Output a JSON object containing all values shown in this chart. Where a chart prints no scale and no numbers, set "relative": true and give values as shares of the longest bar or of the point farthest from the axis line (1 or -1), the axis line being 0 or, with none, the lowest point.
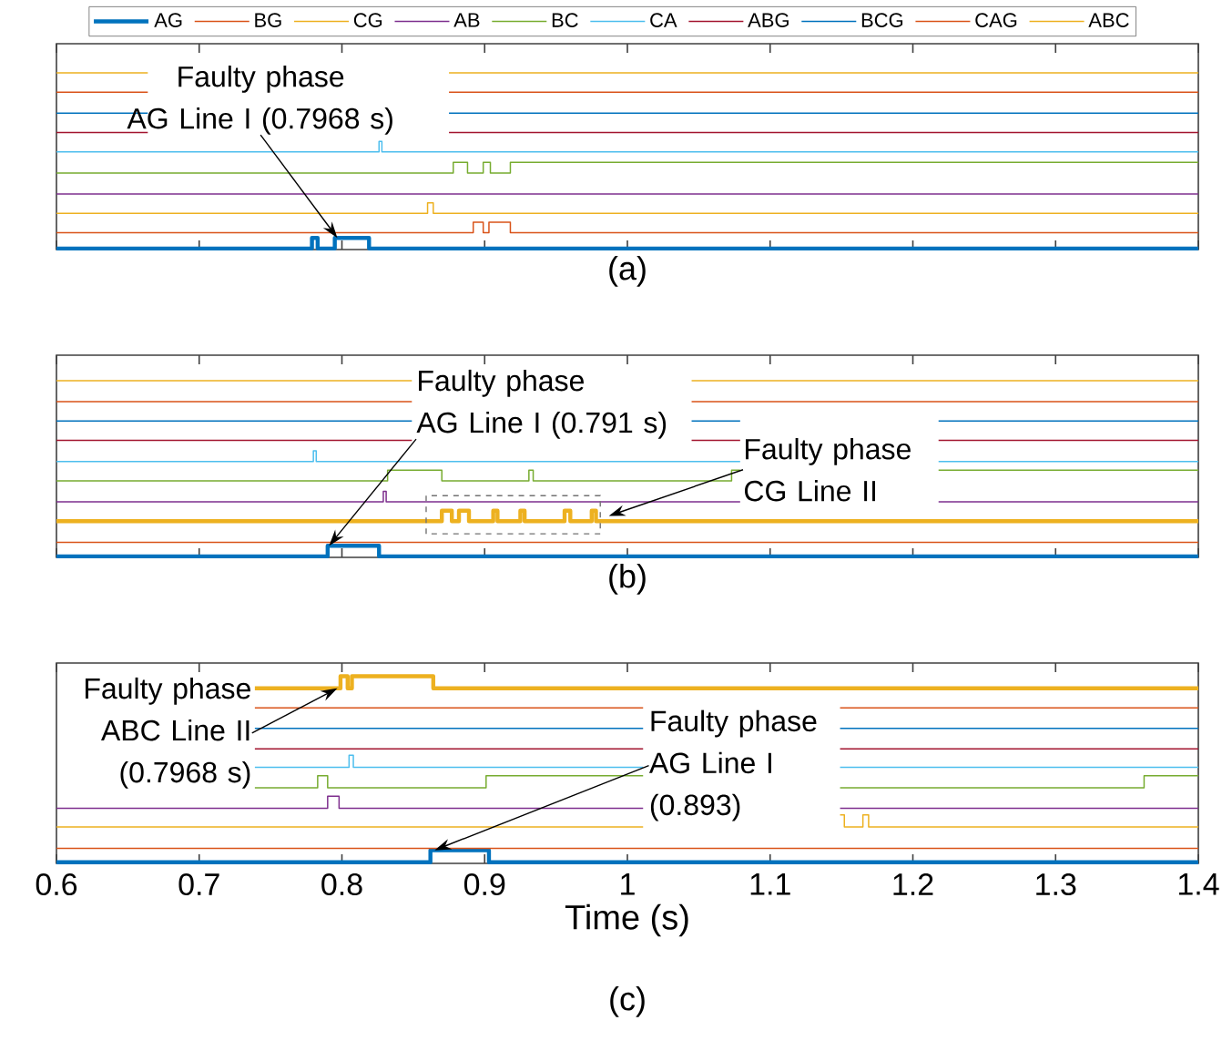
{
  "chart_data": [
    {
      "type": "step",
      "title": "(a)",
      "relative": true,
      "xlim": [
        0.6,
        1.4
      ],
      "xticks": [
        0.6,
        0.7,
        0.8,
        0.9,
        1,
        1.1,
        1.2,
        1.3,
        1.4
      ],
      "tick_labels": false,
      "legend": "top",
      "series": [
        {
          "name": "AG",
          "color": "#0072BD",
          "x": [
            0.6,
            0.779,
            0.783,
            0.795,
            0.819,
            1.4
          ],
          "values": [
            0,
            0.06,
            0,
            0.06,
            0,
            0
          ]
        },
        {
          "name": "BG",
          "color": "#D95319",
          "x": [
            0.6,
            0.892,
            0.899,
            0.903,
            0.918,
            1.4
          ],
          "values": [
            0.09,
            0.15,
            0.09,
            0.15,
            0.09,
            0.09
          ]
        },
        {
          "name": "CG",
          "color": "#EDB120",
          "x": [
            0.6,
            0.86,
            0.864,
            1.4
          ],
          "values": [
            0.2,
            0.26,
            0.2,
            0.2
          ]
        },
        {
          "name": "AB",
          "color": "#7E2F8E",
          "x": [
            0.6,
            1.4
          ],
          "values": [
            0.31,
            0.31
          ]
        },
        {
          "name": "BC",
          "color": "#77AC30",
          "x": [
            0.6,
            0.878,
            0.888,
            0.899,
            0.904,
            0.918,
            1.4
          ],
          "values": [
            0.43,
            0.49,
            0.43,
            0.49,
            0.43,
            0.49,
            0.49
          ]
        },
        {
          "name": "CA",
          "color": "#4DBEEE",
          "x": [
            0.6,
            0.826,
            0.828,
            1.4
          ],
          "values": [
            0.55,
            0.61,
            0.55,
            0.55
          ]
        },
        {
          "name": "ABG",
          "color": "#A2142F",
          "x": [
            0.6,
            0.664,
            0.875,
            1.4
          ],
          "values": [
            0.66,
            null,
            0.66,
            0.66
          ]
        },
        {
          "name": "BCG",
          "color": "#0072BD",
          "x": [
            0.6,
            0.664,
            0.875,
            1.4
          ],
          "values": [
            0.77,
            null,
            0.77,
            0.77
          ]
        },
        {
          "name": "CAG",
          "color": "#D95319",
          "x": [
            0.6,
            0.664,
            0.875,
            1.4
          ],
          "values": [
            0.89,
            null,
            0.89,
            0.89
          ]
        },
        {
          "name": "ABC",
          "color": "#EDB120",
          "x": [
            0.6,
            0.664,
            0.875,
            1.4
          ],
          "values": [
            1.0,
            null,
            1.0,
            1.0
          ]
        }
      ],
      "annotations": [
        {
          "text": "Faulty phase AG Line I (0.7968 s)",
          "x": 0.7968,
          "y": 0.06
        }
      ]
    },
    {
      "type": "step",
      "title": "(b)",
      "relative": true,
      "xlim": [
        0.6,
        1.4
      ],
      "xticks": [
        0.6,
        0.7,
        0.8,
        0.9,
        1,
        1.1,
        1.2,
        1.3,
        1.4
      ],
      "tick_labels": false,
      "series": [
        {
          "color": "#0072BD",
          "x": [
            0.6,
            0.79,
            0.826,
            1.4
          ],
          "values": [
            0,
            0.06,
            0,
            0
          ]
        },
        {
          "color": "#D95319",
          "x": [
            0.6,
            1.4
          ],
          "values": [
            0.08,
            0.08
          ]
        },
        {
          "color": "#EDB120",
          "x": [
            0.6,
            0.87,
            0.877,
            0.882,
            0.889,
            0.906,
            0.909,
            0.925,
            0.928,
            0.956,
            0.96,
            0.975,
            0.978,
            1.4
          ],
          "values": [
            0.2,
            0.26,
            0.2,
            0.26,
            0.2,
            0.26,
            0.2,
            0.26,
            0.2,
            0.26,
            0.2,
            0.26,
            0.2,
            0.2
          ]
        },
        {
          "color": "#7E2F8E",
          "x": [
            0.6,
            0.829,
            0.831,
            1.079,
            1.218,
            1.4
          ],
          "values": [
            0.31,
            0.37,
            0.31,
            null,
            0.31,
            0.31
          ]
        },
        {
          "color": "#77AC30",
          "x": [
            0.6,
            0.832,
            0.87,
            0.931,
            0.934,
            1.073,
            1.079,
            1.218,
            1.4
          ],
          "values": [
            0.43,
            0.49,
            0.43,
            0.49,
            0.43,
            0.49,
            null,
            0.49,
            0.49
          ]
        },
        {
          "color": "#4DBEEE",
          "x": [
            0.6,
            0.78,
            0.782,
            1.079,
            1.218,
            1.4
          ],
          "values": [
            0.54,
            0.6,
            0.54,
            null,
            0.54,
            0.54
          ]
        },
        {
          "color": "#A2142F",
          "x": [
            0.6,
            0.849,
            1.045,
            1.079,
            1.218,
            1.4
          ],
          "values": [
            0.66,
            null,
            0.66,
            null,
            0.66,
            0.66
          ]
        },
        {
          "color": "#0072BD",
          "x": [
            0.6,
            0.849,
            1.045,
            1.079,
            1.218,
            1.4
          ],
          "values": [
            0.77,
            null,
            0.77,
            null,
            0.77,
            0.77
          ]
        },
        {
          "color": "#D95319",
          "x": [
            0.6,
            0.849,
            1.045,
            1.4
          ],
          "values": [
            0.88,
            null,
            0.88,
            0.88
          ]
        },
        {
          "color": "#EDB120",
          "x": [
            0.6,
            0.849,
            1.045,
            1.4
          ],
          "values": [
            1.0,
            null,
            1.0,
            1.0
          ]
        }
      ],
      "annotations": [
        {
          "text": "Faulty phase AG Line I (0.791 s)",
          "x": 0.791,
          "y": 0.06
        },
        {
          "text": "Faulty phase CG Line II",
          "x": 0.987,
          "y": 0.23
        }
      ]
    },
    {
      "type": "step",
      "title": "(c)",
      "xlabel": "Time (s)",
      "relative": true,
      "xlim": [
        0.6,
        1.4
      ],
      "xticks": [
        0.6,
        0.7,
        0.8,
        0.9,
        1,
        1.1,
        1.2,
        1.3,
        1.4
      ],
      "tick_labels": "x",
      "series": [
        {
          "color": "#0072BD",
          "x": [
            0.6,
            0.862,
            0.903,
            1.4
          ],
          "values": [
            0,
            0.065,
            0,
            0
          ]
        },
        {
          "color": "#D95319",
          "x": [
            0.6,
            1.4
          ],
          "values": [
            0.075,
            0.075
          ]
        },
        {
          "color": "#EDB120",
          "x": [
            0.6,
            1.011,
            1.149,
            1.152,
            1.165,
            1.169,
            1.4
          ],
          "values": [
            0.19,
            null,
            0.255,
            0.19,
            0.255,
            0.19,
            0.19
          ]
        },
        {
          "color": "#7E2F8E",
          "x": [
            0.6,
            0.79,
            0.798,
            1.011,
            1.149,
            1.4
          ],
          "values": [
            0.29,
            0.355,
            0.29,
            null,
            0.29,
            0.29
          ]
        },
        {
          "color": "#77AC30",
          "x": [
            0.739,
            0.783,
            0.79,
            0.901,
            1.011,
            1.149,
            1.362,
            1.4
          ],
          "values": [
            0.4,
            0.465,
            0.4,
            0.465,
            null,
            0.4,
            0.465,
            0.465
          ]
        },
        {
          "color": "#4DBEEE",
          "x": [
            0.739,
            0.805,
            0.808,
            1.011,
            1.149,
            1.4
          ],
          "values": [
            0.51,
            0.575,
            0.51,
            null,
            0.51,
            0.51
          ]
        },
        {
          "color": "#A2142F",
          "x": [
            0.739,
            1.011,
            1.149,
            1.4
          ],
          "values": [
            0.61,
            null,
            0.61,
            0.61
          ]
        },
        {
          "color": "#0072BD",
          "x": [
            0.739,
            1.011,
            1.149,
            1.4
          ],
          "values": [
            0.72,
            null,
            0.72,
            0.72
          ]
        },
        {
          "color": "#D95319",
          "x": [
            0.739,
            1.011,
            1.149,
            1.4
          ],
          "values": [
            0.83,
            null,
            0.83,
            0.83
          ]
        },
        {
          "color": "#EDB120",
          "x": [
            0.739,
            0.799,
            0.804,
            0.807,
            0.864,
            1.4
          ],
          "values": [
            0.935,
            1.0,
            0.935,
            1.0,
            0.935,
            0.935
          ]
        }
      ],
      "annotations": [
        {
          "text": "Faulty phase ABC Line II (0.7968 s)",
          "x": 0.7968,
          "y": 0.935
        },
        {
          "text": "Faulty phase AG Line I (0.893)",
          "x": 0.865,
          "y": 0.065
        }
      ]
    }
  ]
}
